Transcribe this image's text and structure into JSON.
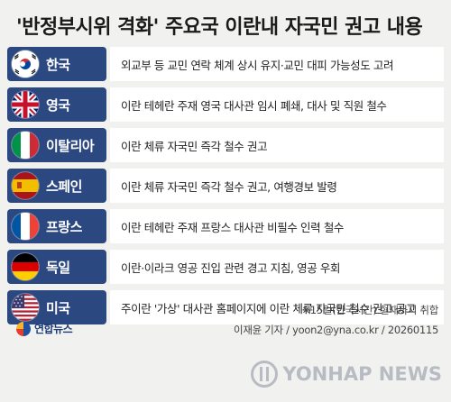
{
  "title": "'반정부시위 격화' 주요국 이란내 자국민 권고 내용",
  "rows": [
    {
      "country": "한국",
      "flag_icon": "south-korea-flag-icon",
      "text": "외교부 등 교민 연락 체계 상시 유지·교민 대피 가능성도 고려"
    },
    {
      "country": "영국",
      "flag_icon": "uk-flag-icon",
      "text": "이란 테헤란 주재 영국 대사관 임시 폐쇄, 대사 및 직원 철수"
    },
    {
      "country": "이탈리아",
      "flag_icon": "italy-flag-icon",
      "text": "이란 체류 자국민 즉각 철수 권고"
    },
    {
      "country": "스페인",
      "flag_icon": "spain-flag-icon",
      "text": "이란 체류 자국민 즉각 철수 권고, 여행경보 발령"
    },
    {
      "country": "프랑스",
      "flag_icon": "france-flag-icon",
      "text": "이란 테헤란 주재 프랑스 대사관 비필수 인력 철수"
    },
    {
      "country": "독일",
      "flag_icon": "germany-flag-icon",
      "text": "이란·이라크 영공 진입 관련 경고 지침, 영공 우회"
    },
    {
      "country": "미국",
      "flag_icon": "usa-flag-icon",
      "text": "주이란 '가상' 대사관 홈페이지에 이란 체류 자국민 철수 권고 공고"
    }
  ],
  "note": "※15일(한국시간) 현재까지 취합",
  "credit": "이재윤 기자 / yoon2@yna.co.kr / 20260115",
  "logo_left": "연합뉴스",
  "brand": "YONHAP NEWS",
  "colors": {
    "country_bg": "#2c4880",
    "page_bg": "#f1f2f0",
    "row_bg": "#ffffff"
  }
}
